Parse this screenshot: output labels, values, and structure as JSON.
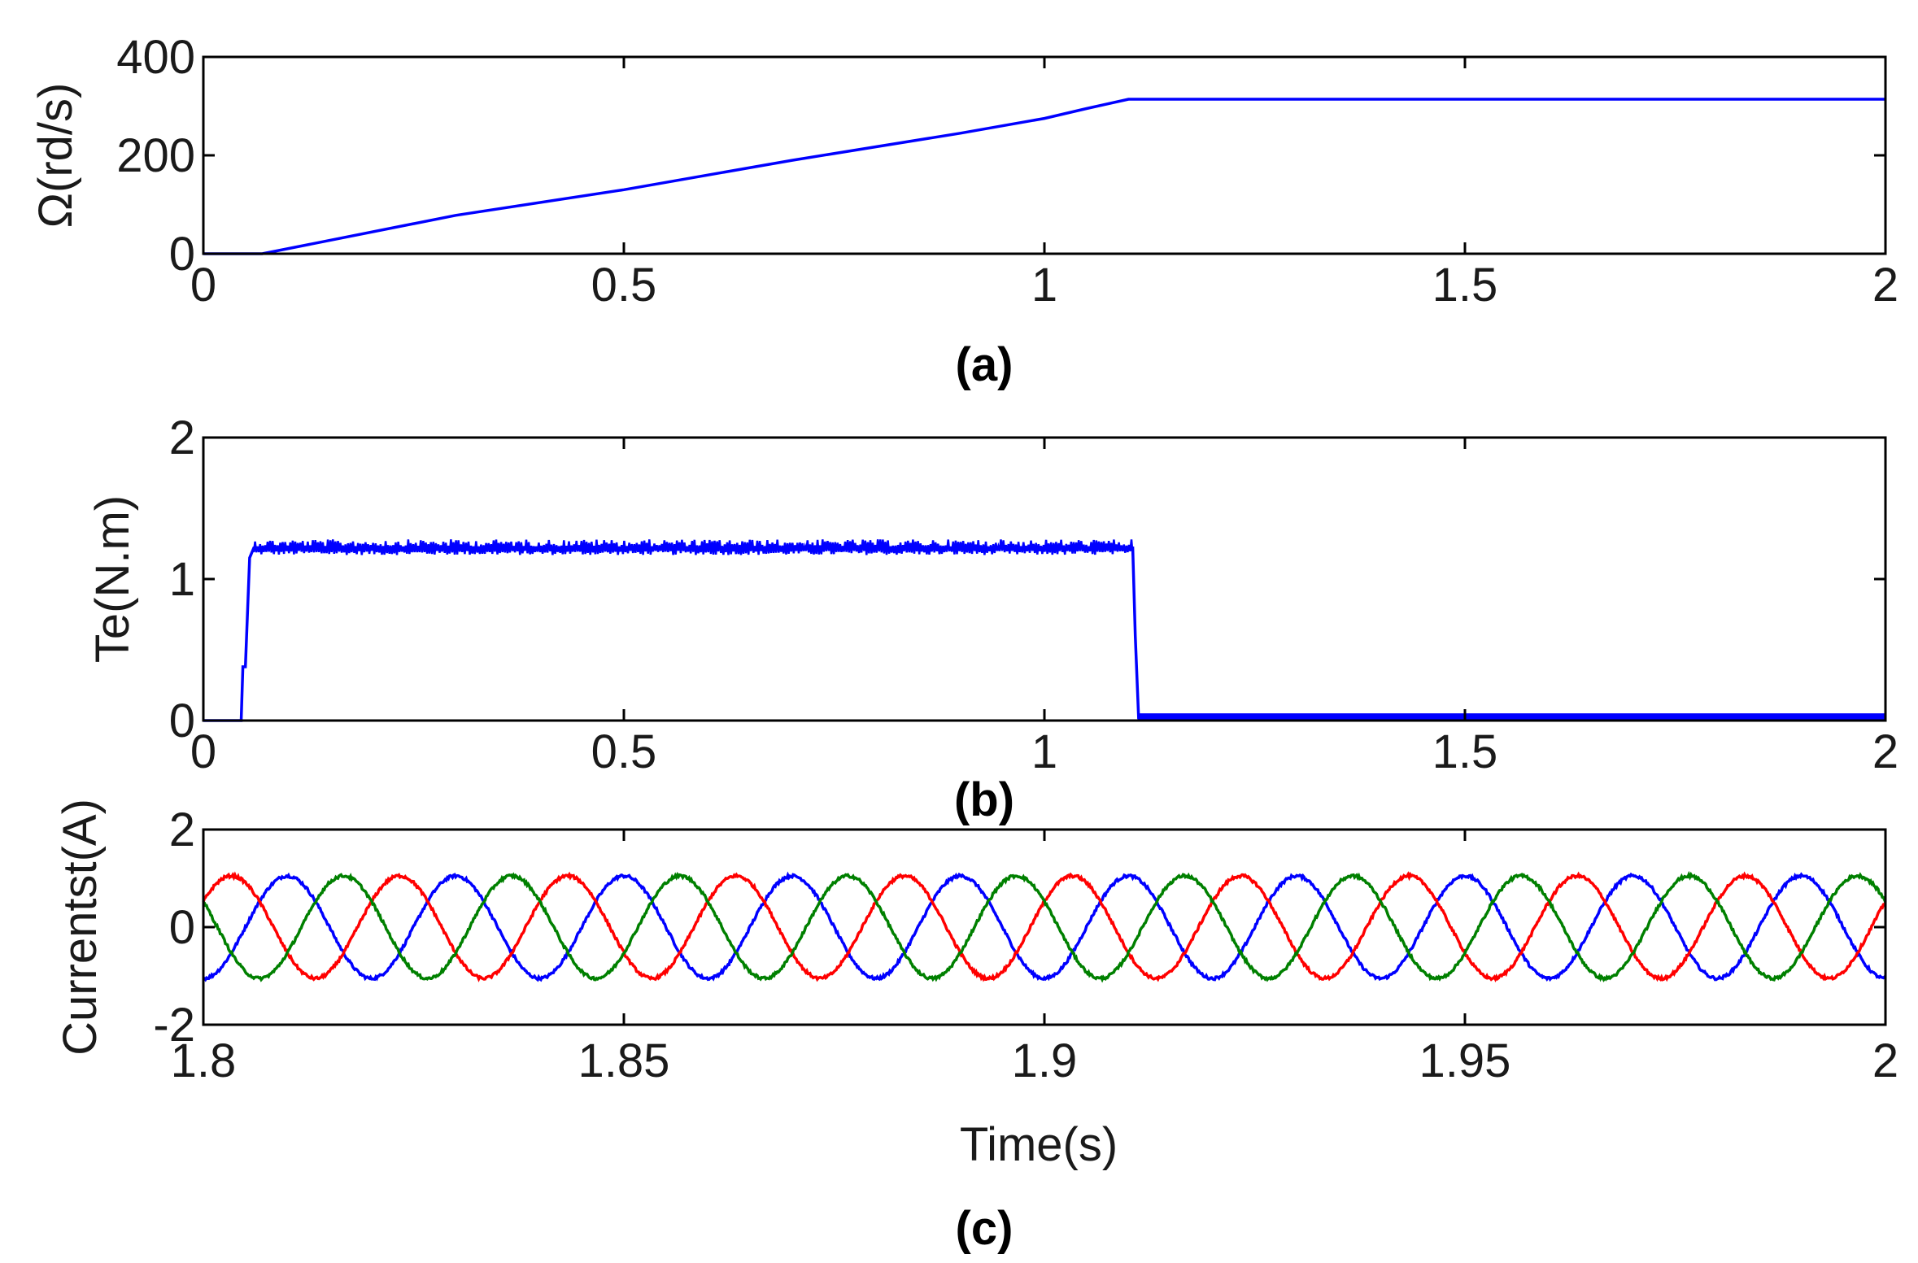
{
  "chart_data": [
    {
      "type": "line",
      "panel_label": "(a)",
      "ylabel": "Ω(rd/s)",
      "xlabel": "",
      "xlim": [
        0,
        2
      ],
      "ylim": [
        0,
        400
      ],
      "x_ticks": [
        "0",
        "0.5",
        "1",
        "1.5",
        "2"
      ],
      "y_ticks": [
        "0",
        "200",
        "400"
      ],
      "series": [
        {
          "color": "#0000ff",
          "points": [
            [
              0,
              0
            ],
            [
              0.07,
              0
            ],
            [
              0.3,
              78
            ],
            [
              0.5,
              130
            ],
            [
              0.7,
              190
            ],
            [
              0.9,
              245
            ],
            [
              1.0,
              275
            ],
            [
              1.05,
              295
            ],
            [
              1.1,
              314
            ],
            [
              2.0,
              314
            ]
          ]
        }
      ]
    },
    {
      "type": "line",
      "panel_label": "(b)",
      "ylabel": "Te(N.m)",
      "xlabel": "",
      "xlim": [
        0,
        2
      ],
      "ylim": [
        0,
        2
      ],
      "x_ticks": [
        "0",
        "0.5",
        "1",
        "1.5",
        "2"
      ],
      "y_ticks": [
        "0",
        "1",
        "2"
      ],
      "series": [
        {
          "color": "#0000ff",
          "points": [
            [
              0,
              0
            ],
            [
              0.045,
              0
            ],
            [
              0.047,
              0.38
            ],
            [
              0.05,
              0.38
            ],
            [
              0.055,
              1.15
            ],
            [
              0.06,
              1.22
            ],
            [
              1.105,
              1.22
            ],
            [
              1.108,
              0.6
            ],
            [
              1.112,
              0.02
            ],
            [
              2.0,
              0.02
            ]
          ],
          "ripple_band": [
            1.17,
            1.28
          ],
          "ripple_range": [
            0.06,
            1.105
          ],
          "tail_band": [
            0.0,
            0.05
          ],
          "tail_range": [
            1.112,
            2.0
          ]
        }
      ]
    },
    {
      "type": "line",
      "panel_label": "(c)",
      "ylabel": "Currentst(A)",
      "xlabel": "Time(s)",
      "xlim": [
        1.8,
        2
      ],
      "ylim": [
        -2,
        2
      ],
      "x_ticks": [
        "1.8",
        "1.85",
        "1.9",
        "1.95",
        "2"
      ],
      "y_ticks": [
        "-2",
        "0",
        "2"
      ],
      "series": [
        {
          "color": "#0000ff",
          "amplitude": 1.05,
          "frequency_hz": 50,
          "phase_deg": 270
        },
        {
          "color": "#ff0000",
          "amplitude": 1.05,
          "frequency_hz": 50,
          "phase_deg": 30
        },
        {
          "color": "#008000",
          "amplitude": 1.05,
          "frequency_hz": 50,
          "phase_deg": 150
        }
      ]
    }
  ]
}
